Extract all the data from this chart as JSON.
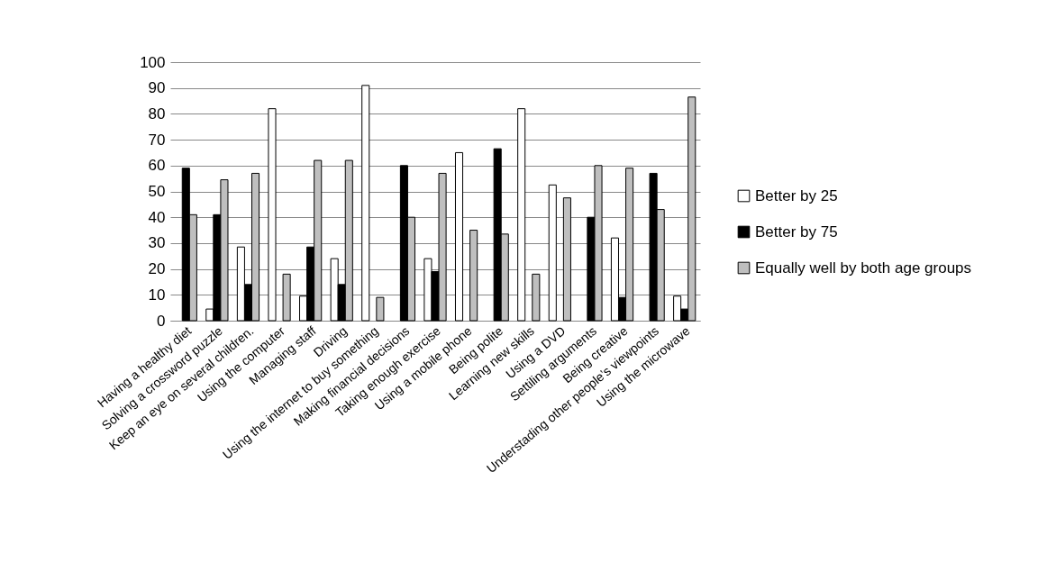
{
  "chart_data": {
    "type": "bar",
    "categories": [
      "Having a healthy diet",
      "Solving a crossword puzzle",
      "Keep an eye on several children.",
      "Using the computer",
      "Managing staff",
      "Driving",
      "Using the internet to buy something",
      "Making financial decisions",
      "Taking enough exercise",
      "Using a mobile phone",
      "Being polite",
      "Learning new skills",
      "Using a DVD",
      "Settiling arguments",
      "Being creative",
      "Understading other people’s viewpoints",
      "Using the microwave"
    ],
    "series": [
      {
        "name": "Better by 25",
        "color": "#ffffff",
        "values": [
          null,
          4.5,
          28.5,
          82,
          9.5,
          24,
          91,
          null,
          24,
          65,
          null,
          82,
          52.5,
          null,
          32,
          null,
          9.5
        ]
      },
      {
        "name": "Better by 75",
        "color": "#000000",
        "values": [
          59,
          41,
          14,
          null,
          28.5,
          14,
          null,
          60,
          19,
          null,
          66.5,
          null,
          null,
          40,
          9,
          57,
          4.5
        ]
      },
      {
        "name": "Equally well by both age groups",
        "color": "#bfbfbf",
        "values": [
          41,
          54.5,
          57,
          18,
          62,
          62,
          9,
          40,
          57,
          35,
          33.5,
          18,
          47.5,
          60,
          59,
          43,
          86.5
        ]
      }
    ],
    "ylim": [
      0,
      100
    ],
    "yticks": [
      0,
      10,
      20,
      30,
      40,
      50,
      60,
      70,
      80,
      90,
      100
    ],
    "grid": "y",
    "legend": "right"
  }
}
